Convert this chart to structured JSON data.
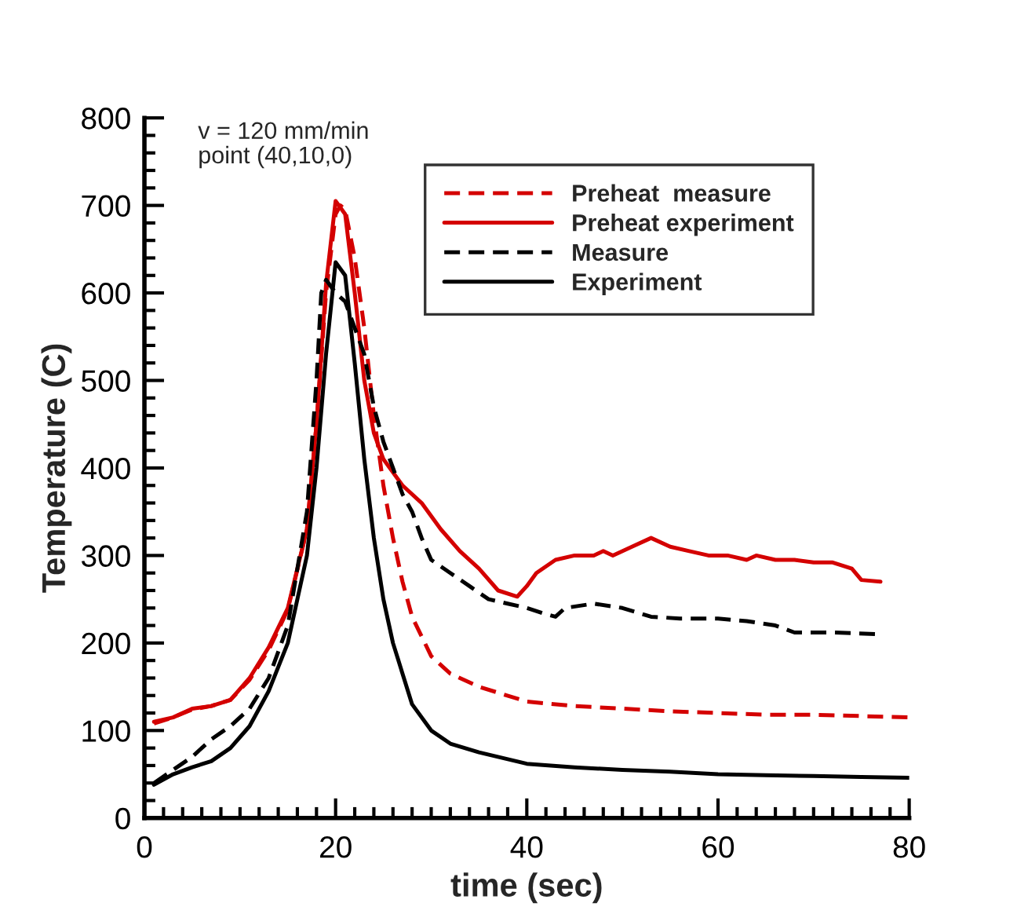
{
  "chart_data": {
    "type": "line",
    "xlabel": "time (sec)",
    "ylabel": "Temperature (C)",
    "annotations": [
      "v = 120 mm/min",
      "point (40,10,0)"
    ],
    "xlim": [
      0,
      80
    ],
    "ylim": [
      0,
      800
    ],
    "xticks": [
      0,
      {
        "value": 2,
        "label": null
      },
      {
        "value": 4,
        "label": null
      },
      {
        "value": 6,
        "label": null
      },
      {
        "value": 8,
        "label": null
      },
      {
        "value": 10,
        "label": null
      },
      {
        "value": 12,
        "label": null
      },
      {
        "value": 14,
        "label": null
      },
      {
        "value": 16,
        "label": null
      },
      {
        "value": 18,
        "label": null
      },
      20,
      {
        "value": 22,
        "label": null
      },
      {
        "value": 24,
        "label": null
      },
      {
        "value": 26,
        "label": null
      },
      {
        "value": 28,
        "label": null
      },
      {
        "value": 30,
        "label": null
      },
      {
        "value": 32,
        "label": null
      },
      {
        "value": 34,
        "label": null
      },
      {
        "value": 36,
        "label": null
      },
      {
        "value": 38,
        "label": null
      },
      40,
      {
        "value": 42,
        "label": null
      },
      {
        "value": 44,
        "label": null
      },
      {
        "value": 46,
        "label": null
      },
      {
        "value": 48,
        "label": null
      },
      {
        "value": 50,
        "label": null
      },
      {
        "value": 52,
        "label": null
      },
      {
        "value": 54,
        "label": null
      },
      {
        "value": 56,
        "label": null
      },
      {
        "value": 58,
        "label": null
      },
      60,
      {
        "value": 62,
        "label": null
      },
      {
        "value": 64,
        "label": null
      },
      {
        "value": 66,
        "label": null
      },
      {
        "value": 68,
        "label": null
      },
      {
        "value": 70,
        "label": null
      },
      {
        "value": 72,
        "label": null
      },
      {
        "value": 74,
        "label": null
      },
      {
        "value": 76,
        "label": null
      },
      {
        "value": 78,
        "label": null
      },
      80
    ],
    "yticks": [
      0,
      {
        "value": 20,
        "label": null
      },
      {
        "value": 40,
        "label": null
      },
      {
        "value": 60,
        "label": null
      },
      {
        "value": 80,
        "label": null
      },
      100,
      {
        "value": 120,
        "label": null
      },
      {
        "value": 140,
        "label": null
      },
      {
        "value": 160,
        "label": null
      },
      {
        "value": 180,
        "label": null
      },
      200,
      {
        "value": 220,
        "label": null
      },
      {
        "value": 240,
        "label": null
      },
      {
        "value": 260,
        "label": null
      },
      {
        "value": 280,
        "label": null
      },
      300,
      {
        "value": 320,
        "label": null
      },
      {
        "value": 340,
        "label": null
      },
      {
        "value": 360,
        "label": null
      },
      {
        "value": 380,
        "label": null
      },
      400,
      {
        "value": 420,
        "label": null
      },
      {
        "value": 440,
        "label": null
      },
      {
        "value": 460,
        "label": null
      },
      {
        "value": 480,
        "label": null
      },
      500,
      {
        "value": 520,
        "label": null
      },
      {
        "value": 540,
        "label": null
      },
      {
        "value": 560,
        "label": null
      },
      {
        "value": 580,
        "label": null
      },
      600,
      {
        "value": 620,
        "label": null
      },
      {
        "value": 640,
        "label": null
      },
      {
        "value": 660,
        "label": null
      },
      {
        "value": 680,
        "label": null
      },
      700,
      {
        "value": 720,
        "label": null
      },
      {
        "value": 740,
        "label": null
      },
      {
        "value": 760,
        "label": null
      },
      {
        "value": 780,
        "label": null
      },
      800
    ],
    "grid": false,
    "legend": "top right",
    "marker": "none",
    "series": [
      {
        "name": "Preheat  measure",
        "color": "#d40000",
        "line_style": "dashed",
        "x": [
          1,
          3,
          5,
          7,
          9,
          11,
          13,
          15,
          17,
          18,
          19,
          20,
          20.5,
          21,
          22,
          23,
          24,
          25,
          26,
          27,
          28,
          30,
          32,
          35,
          40,
          45,
          50,
          55,
          60,
          65,
          70,
          80
        ],
        "values": [
          108,
          115,
          124,
          128,
          135,
          158,
          192,
          238,
          330,
          450,
          600,
          690,
          700,
          695,
          640,
          560,
          460,
          380,
          320,
          270,
          230,
          185,
          165,
          150,
          133,
          128,
          125,
          122,
          120,
          118,
          118,
          115
        ]
      },
      {
        "name": "Preheat experiment",
        "color": "#d40000",
        "line_style": "solid",
        "x": [
          1,
          3,
          5,
          7,
          9,
          11,
          13,
          15,
          17,
          18,
          19,
          20,
          21,
          22,
          23,
          24,
          25,
          27,
          29,
          31,
          33,
          35,
          37,
          39,
          40,
          41,
          43,
          45,
          47,
          48,
          49,
          51,
          53,
          55,
          57,
          59,
          61,
          63,
          64,
          66,
          68,
          70,
          72,
          74,
          75,
          77
        ],
        "values": [
          110,
          115,
          125,
          128,
          135,
          160,
          195,
          240,
          330,
          450,
          610,
          705,
          690,
          600,
          500,
          440,
          410,
          380,
          360,
          330,
          305,
          285,
          260,
          253,
          265,
          280,
          295,
          300,
          300,
          305,
          300,
          310,
          320,
          310,
          305,
          300,
          300,
          295,
          300,
          295,
          295,
          292,
          292,
          285,
          272,
          270
        ]
      },
      {
        "name": "Measure",
        "color": "#000000",
        "line_style": "dashed",
        "x": [
          1,
          3,
          5,
          7,
          9,
          11,
          13,
          15,
          17,
          18,
          18.5,
          19,
          20,
          21,
          22,
          23,
          24,
          25,
          26,
          27,
          28,
          29,
          30,
          32,
          34,
          36,
          38,
          40,
          42,
          43,
          44,
          47,
          50,
          53,
          56,
          60,
          63,
          66,
          68,
          72,
          77
        ],
        "values": [
          40,
          55,
          70,
          90,
          105,
          125,
          160,
          220,
          350,
          500,
          600,
          615,
          600,
          590,
          560,
          530,
          470,
          430,
          400,
          370,
          350,
          320,
          295,
          280,
          265,
          250,
          245,
          240,
          233,
          230,
          240,
          245,
          240,
          230,
          228,
          228,
          225,
          220,
          212,
          212,
          210
        ]
      },
      {
        "name": "Experiment",
        "color": "#000000",
        "line_style": "solid",
        "x": [
          1,
          3,
          5,
          7,
          9,
          11,
          13,
          15,
          17,
          18,
          19,
          20,
          21,
          22,
          23,
          24,
          25,
          26,
          27,
          28,
          30,
          32,
          35,
          40,
          45,
          50,
          55,
          60,
          65,
          70,
          75,
          80
        ],
        "values": [
          38,
          50,
          58,
          65,
          80,
          105,
          145,
          200,
          300,
          400,
          530,
          635,
          620,
          520,
          410,
          320,
          250,
          200,
          165,
          130,
          100,
          85,
          75,
          62,
          58,
          55,
          53,
          50,
          49,
          48,
          47,
          46
        ]
      }
    ]
  }
}
